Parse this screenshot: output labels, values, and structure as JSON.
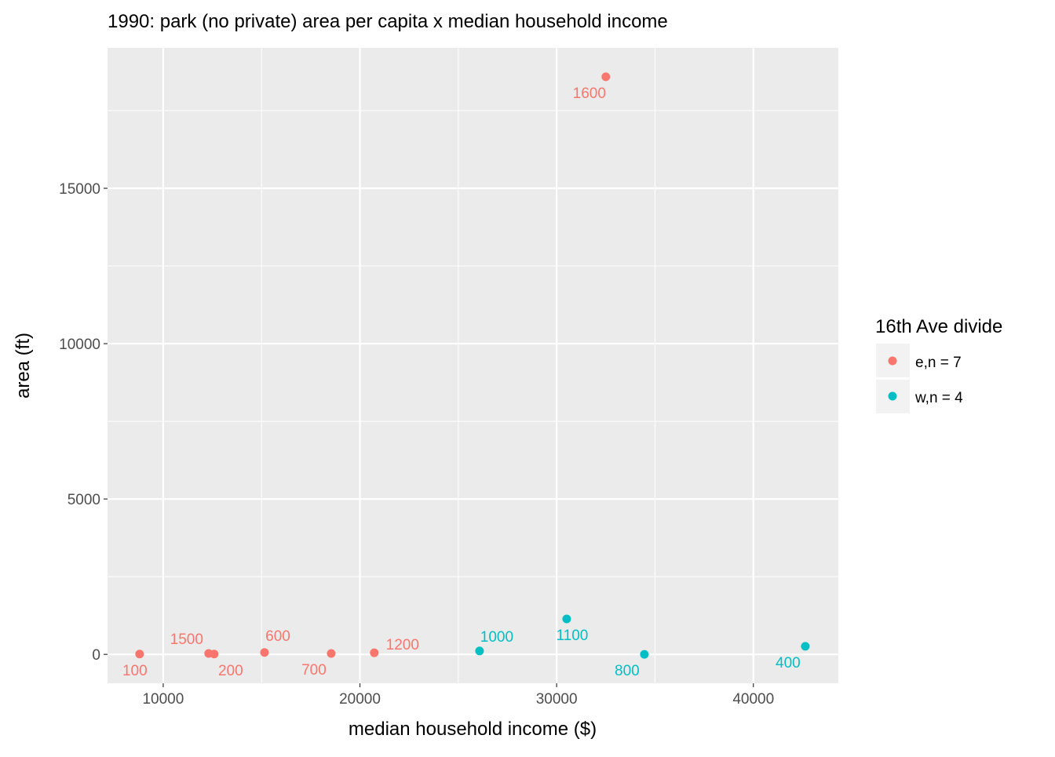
{
  "chart_data": {
    "type": "scatter",
    "title": "1990: park (no private) area per capita x median household income",
    "xlabel": "median household income ($)",
    "ylabel": "area (ft)",
    "xlim": [
      7170,
      44320
    ],
    "ylim": [
      -930,
      19520
    ],
    "x_ticks": [
      10000,
      20000,
      30000,
      40000
    ],
    "x_tick_labels": [
      "10000",
      "20000",
      "30000",
      "40000"
    ],
    "y_ticks": [
      0,
      5000,
      10000,
      15000
    ],
    "y_tick_labels": [
      "0",
      "5000",
      "10000",
      "15000"
    ],
    "grid": true,
    "legend": {
      "title": "16th Ave divide",
      "placement": "right",
      "entries": [
        {
          "key": "e",
          "label": "e,n = 7",
          "color": "#F8766D"
        },
        {
          "key": "w",
          "label": "w,n = 4",
          "color": "#00BFC4"
        }
      ]
    },
    "points": [
      {
        "label": "100",
        "x": 8800,
        "y": 10,
        "group": "e"
      },
      {
        "label": "1500",
        "x": 12310,
        "y": 30,
        "group": "e"
      },
      {
        "label": "200",
        "x": 12590,
        "y": 10,
        "group": "e"
      },
      {
        "label": "600",
        "x": 15150,
        "y": 60,
        "group": "e"
      },
      {
        "label": "700",
        "x": 18540,
        "y": 30,
        "group": "e"
      },
      {
        "label": "1200",
        "x": 20730,
        "y": 50,
        "group": "e"
      },
      {
        "label": "1600",
        "x": 32500,
        "y": 18590,
        "group": "e"
      },
      {
        "label": "1000",
        "x": 26080,
        "y": 110,
        "group": "w"
      },
      {
        "label": "1100",
        "x": 30510,
        "y": 1140,
        "group": "w"
      },
      {
        "label": "800",
        "x": 34460,
        "y": 0,
        "group": "w"
      },
      {
        "label": "400",
        "x": 42640,
        "y": 260,
        "group": "w"
      }
    ]
  }
}
